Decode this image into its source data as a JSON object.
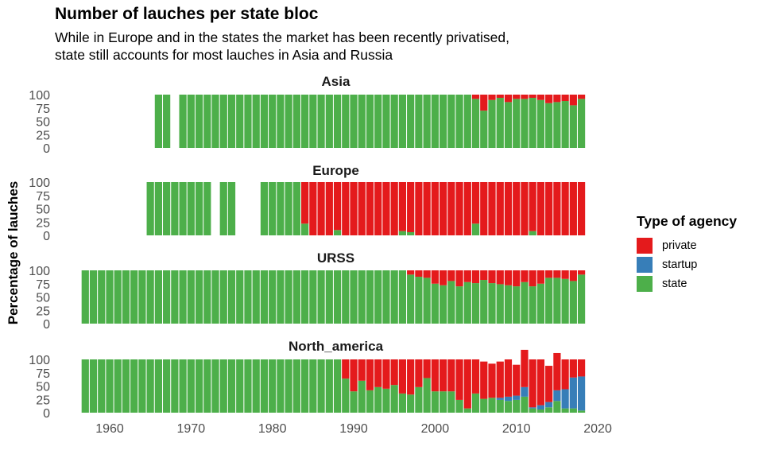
{
  "title": "Number of lauches per state bloc",
  "subtitle_lines": [
    "While in Europe and in the states the market has been recently privatised,",
    "state still accounts for most lauches in Asia and Russia"
  ],
  "colors": {
    "private": "#E41A1C",
    "startup": "#377EB8",
    "state": "#4DAF4A"
  },
  "chart_data": {
    "type": "bar",
    "stacked": true,
    "ylabel": "Percentage of lauches",
    "ylim": [
      0,
      100
    ],
    "yticks": [
      0,
      25,
      50,
      75,
      100
    ],
    "xlim": [
      1955.8,
      2019.8
    ],
    "xticks": [
      1960,
      1970,
      1980,
      1990,
      2000,
      2010,
      2020
    ],
    "legend": {
      "title": "Type of agency",
      "position": "right",
      "entries": [
        "private",
        "startup",
        "state"
      ]
    },
    "grid": false,
    "panels": [
      {
        "name": "Asia",
        "x": [
          1966,
          1967,
          1969,
          1970,
          1971,
          1972,
          1973,
          1974,
          1975,
          1976,
          1977,
          1978,
          1979,
          1980,
          1981,
          1982,
          1983,
          1984,
          1985,
          1986,
          1987,
          1988,
          1989,
          1990,
          1991,
          1992,
          1993,
          1994,
          1995,
          1996,
          1997,
          1998,
          1999,
          2000,
          2001,
          2002,
          2003,
          2004,
          2005,
          2006,
          2007,
          2008,
          2009,
          2010,
          2011,
          2012,
          2013,
          2014,
          2015,
          2016,
          2017,
          2018
        ],
        "state": [
          100,
          100,
          100,
          100,
          100,
          100,
          100,
          100,
          100,
          100,
          100,
          100,
          100,
          100,
          100,
          100,
          100,
          100,
          100,
          100,
          100,
          100,
          100,
          100,
          100,
          100,
          100,
          100,
          100,
          100,
          100,
          100,
          100,
          100,
          100,
          100,
          100,
          100,
          92,
          70,
          90,
          94,
          86,
          92,
          92,
          94,
          90,
          84,
          86,
          88,
          80,
          92
        ],
        "startup": [
          0,
          0,
          0,
          0,
          0,
          0,
          0,
          0,
          0,
          0,
          0,
          0,
          0,
          0,
          0,
          0,
          0,
          0,
          0,
          0,
          0,
          0,
          0,
          0,
          0,
          0,
          0,
          0,
          0,
          0,
          0,
          0,
          0,
          0,
          0,
          0,
          0,
          0,
          0,
          0,
          0,
          0,
          0,
          0,
          0,
          0,
          0,
          0,
          0,
          0,
          0,
          0
        ],
        "private": [
          0,
          0,
          0,
          0,
          0,
          0,
          0,
          0,
          0,
          0,
          0,
          0,
          0,
          0,
          0,
          0,
          0,
          0,
          0,
          0,
          0,
          0,
          0,
          0,
          0,
          0,
          0,
          0,
          0,
          0,
          0,
          0,
          0,
          0,
          0,
          0,
          0,
          0,
          8,
          30,
          10,
          6,
          14,
          8,
          8,
          6,
          10,
          16,
          14,
          12,
          20,
          8
        ]
      },
      {
        "name": "Europe",
        "x": [
          1965,
          1966,
          1967,
          1968,
          1969,
          1970,
          1971,
          1972,
          1974,
          1975,
          1979,
          1980,
          1981,
          1982,
          1983,
          1984,
          1985,
          1986,
          1987,
          1988,
          1989,
          1990,
          1991,
          1992,
          1993,
          1994,
          1995,
          1996,
          1997,
          1998,
          1999,
          2000,
          2001,
          2002,
          2003,
          2004,
          2005,
          2006,
          2007,
          2008,
          2009,
          2010,
          2011,
          2012,
          2013,
          2014,
          2015,
          2016,
          2017,
          2018
        ],
        "state": [
          100,
          100,
          100,
          100,
          100,
          100,
          100,
          100,
          100,
          100,
          100,
          100,
          100,
          100,
          100,
          22,
          0,
          0,
          0,
          10,
          0,
          0,
          0,
          0,
          0,
          0,
          0,
          8,
          6,
          0,
          0,
          0,
          0,
          0,
          0,
          0,
          22,
          0,
          0,
          0,
          0,
          0,
          0,
          8,
          0,
          0,
          0,
          0,
          0,
          0
        ],
        "startup": [
          0,
          0,
          0,
          0,
          0,
          0,
          0,
          0,
          0,
          0,
          0,
          0,
          0,
          0,
          0,
          0,
          0,
          0,
          0,
          0,
          0,
          0,
          0,
          0,
          0,
          0,
          0,
          0,
          0,
          0,
          0,
          0,
          0,
          0,
          0,
          0,
          0,
          0,
          0,
          0,
          0,
          0,
          0,
          0,
          0,
          0,
          0,
          0,
          0,
          0
        ],
        "private": [
          0,
          0,
          0,
          0,
          0,
          0,
          0,
          0,
          0,
          0,
          0,
          0,
          0,
          0,
          0,
          78,
          100,
          100,
          100,
          90,
          100,
          100,
          100,
          100,
          100,
          100,
          100,
          92,
          94,
          100,
          100,
          100,
          100,
          100,
          100,
          100,
          78,
          100,
          100,
          100,
          100,
          100,
          100,
          92,
          100,
          100,
          100,
          100,
          100,
          100
        ]
      },
      {
        "name": "URSS",
        "x": [
          1957,
          1958,
          1959,
          1960,
          1961,
          1962,
          1963,
          1964,
          1965,
          1966,
          1967,
          1968,
          1969,
          1970,
          1971,
          1972,
          1973,
          1974,
          1975,
          1976,
          1977,
          1978,
          1979,
          1980,
          1981,
          1982,
          1983,
          1984,
          1985,
          1986,
          1987,
          1988,
          1989,
          1990,
          1991,
          1992,
          1993,
          1994,
          1995,
          1996,
          1997,
          1998,
          1999,
          2000,
          2001,
          2002,
          2003,
          2004,
          2005,
          2006,
          2007,
          2008,
          2009,
          2010,
          2011,
          2012,
          2013,
          2014,
          2015,
          2016,
          2017,
          2018
        ],
        "state": [
          100,
          100,
          100,
          100,
          100,
          100,
          100,
          100,
          100,
          100,
          100,
          100,
          100,
          100,
          100,
          100,
          100,
          100,
          100,
          100,
          100,
          100,
          100,
          100,
          100,
          100,
          100,
          100,
          100,
          100,
          100,
          100,
          100,
          100,
          100,
          100,
          100,
          100,
          100,
          100,
          92,
          88,
          86,
          75,
          72,
          80,
          70,
          78,
          76,
          82,
          76,
          74,
          72,
          70,
          78,
          70,
          75,
          86,
          86,
          84,
          80,
          92
        ],
        "startup": [
          0,
          0,
          0,
          0,
          0,
          0,
          0,
          0,
          0,
          0,
          0,
          0,
          0,
          0,
          0,
          0,
          0,
          0,
          0,
          0,
          0,
          0,
          0,
          0,
          0,
          0,
          0,
          0,
          0,
          0,
          0,
          0,
          0,
          0,
          0,
          0,
          0,
          0,
          0,
          0,
          0,
          0,
          0,
          0,
          0,
          0,
          0,
          0,
          0,
          0,
          0,
          0,
          0,
          0,
          0,
          0,
          0,
          0,
          0,
          0,
          0,
          0
        ],
        "private": [
          0,
          0,
          0,
          0,
          0,
          0,
          0,
          0,
          0,
          0,
          0,
          0,
          0,
          0,
          0,
          0,
          0,
          0,
          0,
          0,
          0,
          0,
          0,
          0,
          0,
          0,
          0,
          0,
          0,
          0,
          0,
          0,
          0,
          0,
          0,
          0,
          0,
          0,
          0,
          0,
          8,
          12,
          14,
          25,
          28,
          20,
          30,
          22,
          24,
          18,
          24,
          26,
          28,
          30,
          22,
          30,
          25,
          14,
          14,
          16,
          20,
          8
        ]
      },
      {
        "name": "North_america",
        "x": [
          1957,
          1958,
          1959,
          1960,
          1961,
          1962,
          1963,
          1964,
          1965,
          1966,
          1967,
          1968,
          1969,
          1970,
          1971,
          1972,
          1973,
          1974,
          1975,
          1976,
          1977,
          1978,
          1979,
          1980,
          1981,
          1982,
          1983,
          1984,
          1985,
          1986,
          1987,
          1988,
          1989,
          1990,
          1991,
          1992,
          1993,
          1994,
          1995,
          1996,
          1997,
          1998,
          1999,
          2000,
          2001,
          2002,
          2003,
          2004,
          2005,
          2006,
          2007,
          2008,
          2009,
          2010,
          2011,
          2012,
          2013,
          2014,
          2015,
          2016,
          2017,
          2018
        ],
        "state": [
          100,
          100,
          100,
          100,
          100,
          100,
          100,
          100,
          100,
          100,
          100,
          100,
          100,
          100,
          100,
          100,
          100,
          100,
          100,
          100,
          100,
          100,
          100,
          100,
          100,
          100,
          100,
          100,
          100,
          100,
          100,
          100,
          64,
          40,
          60,
          42,
          48,
          45,
          52,
          36,
          34,
          48,
          65,
          40,
          40,
          40,
          24,
          8,
          36,
          26,
          28,
          24,
          22,
          24,
          30,
          8,
          6,
          10,
          22,
          8,
          8,
          4
        ],
        "startup": [
          0,
          0,
          0,
          0,
          0,
          0,
          0,
          0,
          0,
          0,
          0,
          0,
          0,
          0,
          0,
          0,
          0,
          0,
          0,
          0,
          0,
          0,
          0,
          0,
          0,
          0,
          0,
          0,
          0,
          0,
          0,
          0,
          0,
          0,
          0,
          0,
          0,
          0,
          0,
          0,
          0,
          0,
          0,
          0,
          0,
          0,
          0,
          0,
          0,
          0,
          0,
          4,
          8,
          8,
          18,
          2,
          8,
          10,
          20,
          36,
          58,
          64
        ],
        "private": [
          0,
          0,
          0,
          0,
          0,
          0,
          0,
          0,
          0,
          0,
          0,
          0,
          0,
          0,
          0,
          0,
          0,
          0,
          0,
          0,
          0,
          0,
          0,
          0,
          0,
          0,
          0,
          0,
          0,
          0,
          0,
          0,
          36,
          60,
          40,
          58,
          52,
          55,
          48,
          64,
          66,
          52,
          35,
          60,
          60,
          60,
          76,
          92,
          64,
          70,
          64,
          68,
          70,
          58,
          70,
          90,
          86,
          68,
          70,
          56,
          34,
          32
        ]
      }
    ]
  }
}
